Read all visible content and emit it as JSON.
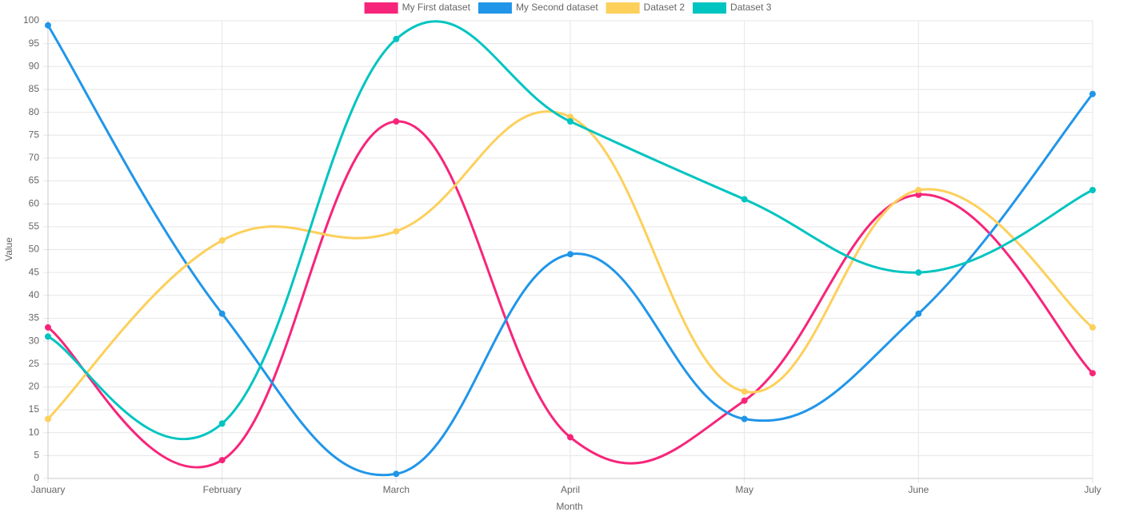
{
  "chart_data": {
    "type": "line",
    "categories": [
      "January",
      "February",
      "March",
      "April",
      "May",
      "June",
      "July"
    ],
    "series": [
      {
        "name": "My First dataset",
        "color": "#f7257a",
        "values": [
          33,
          4,
          78,
          9,
          17,
          62,
          23
        ]
      },
      {
        "name": "My Second dataset",
        "color": "#2196e9",
        "values": [
          99,
          36,
          1,
          49,
          13,
          36,
          84
        ]
      },
      {
        "name": "Dataset 2",
        "color": "#fdd05c",
        "values": [
          13,
          52,
          54,
          79,
          19,
          63,
          33
        ]
      },
      {
        "name": "Dataset 3",
        "color": "#00c4c0",
        "values": [
          31,
          12,
          96,
          78,
          61,
          45,
          63
        ]
      }
    ],
    "xlabel": "Month",
    "ylabel": "Value",
    "ylim": [
      0,
      100
    ],
    "ytick_step": 5,
    "curve": "smooth",
    "grid": true,
    "legend_position": "top"
  }
}
